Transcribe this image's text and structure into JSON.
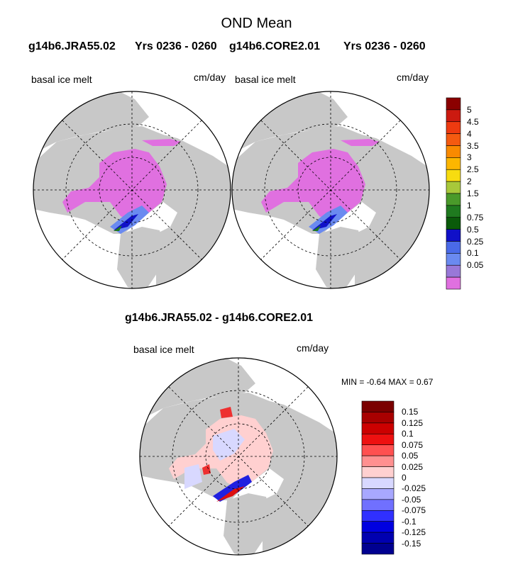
{
  "title": "OND Mean",
  "panels": [
    {
      "case": "g14b6.JRA55.02",
      "years": "Yrs 0236 - 0260",
      "variable": "basal ice melt",
      "units": "cm/day"
    },
    {
      "case": "g14b6.CORE2.01",
      "years": "Yrs 0236 - 0260",
      "variable": "basal ice melt",
      "units": "cm/day"
    }
  ],
  "diff": {
    "title": "g14b6.JRA55.02 - g14b6.CORE2.01",
    "variable": "basal ice melt",
    "units": "cm/day",
    "stats": "MIN =  -0.64 MAX =   0.67"
  },
  "colorbar_top": {
    "labels": [
      "5",
      "4.5",
      "4",
      "3.5",
      "3",
      "2.5",
      "2",
      "1.5",
      "1",
      "0.75",
      "0.5",
      "0.25",
      "0.1",
      "0.05"
    ],
    "colors": [
      "#8b0000",
      "#cc1a10",
      "#ee3a10",
      "#f45a10",
      "#f98a00",
      "#fcb600",
      "#f7dc10",
      "#a8c83a",
      "#4a9a2a",
      "#1f7a1f",
      "#0a5a0a",
      "#1010c8",
      "#4a6ae8",
      "#6a8af0",
      "#9878d8",
      "#e070e0"
    ]
  },
  "colorbar_diff": {
    "labels": [
      "0.15",
      "0.125",
      "0.1",
      "0.075",
      "0.05",
      "0.025",
      "0",
      "-0.025",
      "-0.05",
      "-0.075",
      "-0.1",
      "-0.125",
      "-0.15"
    ],
    "colors": [
      "#7a0000",
      "#a80000",
      "#cc0000",
      "#ee1010",
      "#ff5050",
      "#ff9090",
      "#ffd0d0",
      "#d8d8ff",
      "#a8a8ff",
      "#7070ff",
      "#3030ff",
      "#0000e0",
      "#0000b0",
      "#000090"
    ]
  },
  "map_colors": {
    "land": "#c8c8c8",
    "ocean": "#ffffff",
    "melt_low": "#e070e0",
    "melt_blue": "#6a8af0",
    "melt_dark": "#1010c8",
    "melt_green": "#1f7a1f",
    "diff_pos": "#ffd0d0",
    "diff_neg": "#d8d8ff"
  }
}
